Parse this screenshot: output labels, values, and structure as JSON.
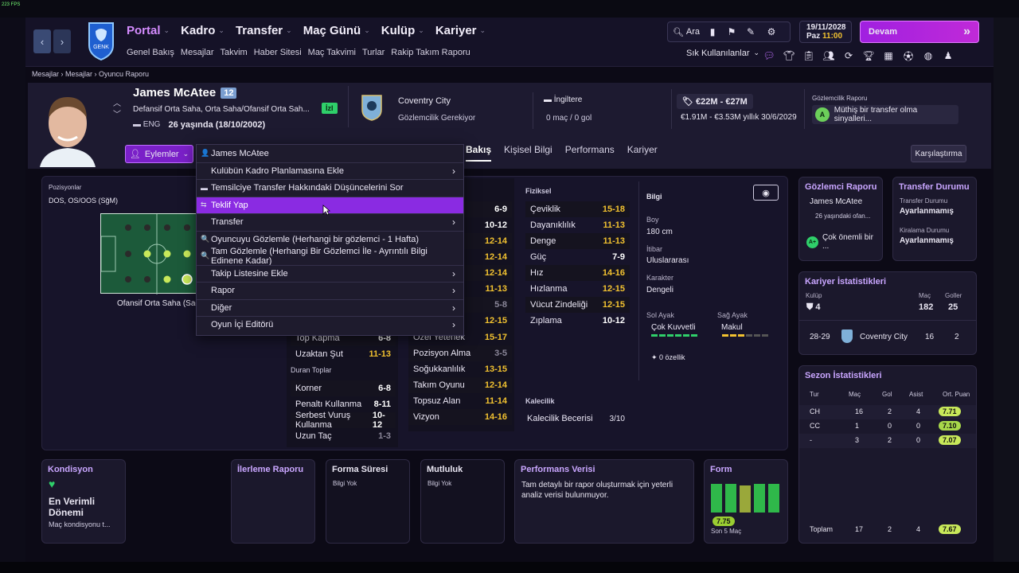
{
  "topbar": {
    "fps": "223 FPS"
  },
  "nav": {
    "back": "‹",
    "forward": "›",
    "menus": [
      {
        "label": "Portal"
      },
      {
        "label": "Kadro"
      },
      {
        "label": "Transfer"
      },
      {
        "label": "Maç Günü"
      },
      {
        "label": "Kulüp"
      },
      {
        "label": "Kariyer"
      }
    ],
    "submenus": [
      "Genel Bakış",
      "Mesajlar",
      "Takvim",
      "Haber Sitesi",
      "Maç Takvimi",
      "Turlar",
      "Rakip Takım Raporu"
    ],
    "search_label": "Ara",
    "date": "19/11/2028",
    "day": "Paz",
    "time": "11:00",
    "continue_label": "Devam",
    "shortcuts_label": "Sık Kullanılanlar",
    "club_logo_text": "GENK"
  },
  "breadcrumb": [
    "Mesajlar",
    "Mesajlar",
    "Oyuncu Raporu"
  ],
  "player": {
    "name": "James McAtee",
    "number": "12",
    "positions": "Defansif Orta Saha, Orta Saha/Ofansif Orta Sah...",
    "nationality": "ENG",
    "age": "26 yaşında (18/10/2002)",
    "status_badge": "İzl",
    "club": "Coventry City",
    "club_status": "Gözlemcilik Gerekiyor",
    "country": "İngiltere",
    "caps": "0 maç / 0 gol",
    "value": "€22M - €27M",
    "wage": "€1.91M - €3.53M yıllık 30/6/2029",
    "scout_report_title": "Gözlemcilik Raporu",
    "scout_grade": "A",
    "scout_report": "Müthiş bir transfer olma sinyalleri..."
  },
  "actions_label": "Eylemler",
  "tabs": [
    "Bakış",
    "Kişisel Bilgi",
    "Performans",
    "Kariyer"
  ],
  "compare_label": "Karşılaştırma",
  "context_menu": [
    {
      "label": "James McAtee",
      "icon": "👤",
      "arrow": ""
    },
    {
      "label": "Kulübün Kadro Planlamasına Ekle",
      "icon": "",
      "arrow": "›"
    },
    {
      "label": "Temsilciye Transfer Hakkındaki Düşüncelerini Sor",
      "icon": "▬",
      "arrow": ""
    },
    {
      "label": "Teklif Yap",
      "icon": "⇆",
      "arrow": ""
    },
    {
      "label": "Transfer",
      "icon": "",
      "arrow": "›"
    },
    {
      "label": "Oyuncuyu Gözlemle (Herhangi bir gözlemci - 1 Hafta)",
      "icon": "🔍",
      "arrow": ""
    },
    {
      "label": "Tam Gözlemle (Herhangi Bir Gözlemci İle - Ayrıntılı Bilgi Edinene Kadar)",
      "icon": "🔍",
      "arrow": ""
    },
    {
      "label": "Takip Listesine Ekle",
      "icon": "",
      "arrow": "›"
    },
    {
      "label": "Rapor",
      "icon": "",
      "arrow": "›"
    },
    {
      "label": "Diğer",
      "icon": "",
      "arrow": "›"
    },
    {
      "label": "Oyun İçi Editörü",
      "icon": "",
      "arrow": "›"
    }
  ],
  "positions_panel": {
    "title": "Pozisyonlar",
    "positions": "DOS, OS/OOS (SğM)",
    "role": "Ofansif Orta Saha (Sağ)"
  },
  "attrs_col1": {
    "visible": [
      {
        "name": "",
        "val": "6-9",
        "c": "wht"
      },
      {
        "name": "",
        "val": "10-12",
        "c": "wht"
      },
      {
        "name": "",
        "val": "12-14",
        "c": "yel"
      },
      {
        "name": "",
        "val": "12-14",
        "c": "yel"
      },
      {
        "name": "",
        "val": "12-14",
        "c": "yel"
      },
      {
        "name": "",
        "val": "11-13",
        "c": "yel"
      },
      {
        "name": "",
        "val": "5-8",
        "c": "gry"
      },
      {
        "name": "",
        "val": "12-15",
        "c": "yel"
      }
    ],
    "tail": [
      {
        "name": "Top Kapma",
        "val": "6-8",
        "c": "wht"
      },
      {
        "name": "Uzaktan Şut",
        "val": "11-13",
        "c": "yel"
      }
    ],
    "set_title": "Duran Toplar",
    "set": [
      {
        "name": "Korner",
        "val": "6-8",
        "c": "wht"
      },
      {
        "name": "Penaltı Kullanma",
        "val": "8-11",
        "c": "wht"
      },
      {
        "name": "Serbest Vuruş Kullanma",
        "val": "10-12",
        "c": "wht"
      },
      {
        "name": "Uzun Taç",
        "val": "1-3",
        "c": "gry"
      }
    ]
  },
  "attrs_col2": [
    {
      "name": "Özel Yetenek",
      "val": "15-17",
      "c": "yel"
    },
    {
      "name": "Pozisyon Alma",
      "val": "3-5",
      "c": "gry"
    },
    {
      "name": "Soğukkanlılık",
      "val": "13-15",
      "c": "yel"
    },
    {
      "name": "Takım Oyunu",
      "val": "12-14",
      "c": "yel"
    },
    {
      "name": "Topsuz Alan",
      "val": "11-14",
      "c": "yel"
    },
    {
      "name": "Vizyon",
      "val": "14-16",
      "c": "yel"
    }
  ],
  "physical": {
    "title": "Fiziksel",
    "items": [
      {
        "name": "Çeviklik",
        "val": "15-18",
        "c": "yel"
      },
      {
        "name": "Dayanıklılık",
        "val": "11-13",
        "c": "yel"
      },
      {
        "name": "Denge",
        "val": "11-13",
        "c": "yel"
      },
      {
        "name": "Güç",
        "val": "7-9",
        "c": "wht"
      },
      {
        "name": "Hız",
        "val": "14-16",
        "c": "yel"
      },
      {
        "name": "Hızlanma",
        "val": "12-15",
        "c": "yel"
      },
      {
        "name": "Vücut Zindeliği",
        "val": "12-15",
        "c": "yel"
      },
      {
        "name": "Zıplama",
        "val": "10-12",
        "c": "wht"
      }
    ]
  },
  "goalkeeping": {
    "title": "Kalecilik",
    "name": "Kalecilik Becerisi",
    "val": "3/10"
  },
  "info": {
    "title": "Bilgi",
    "height_label": "Boy",
    "height": "180 cm",
    "rep_label": "İtibar",
    "rep": "Uluslararası",
    "pers_label": "Karakter",
    "pers": "Dengeli",
    "left_label": "Sol Ayak",
    "left": "Çok Kuvvetli",
    "right_label": "Sağ Ayak",
    "right": "Makul",
    "traits": "0 özellik"
  },
  "scout_card": {
    "title": "Gözlemci Raporu",
    "name": "James McAtee",
    "age": "26 yaşındaki ofan...",
    "summary": "Çok önemli bir ...",
    "grade": "A+"
  },
  "transfer_card": {
    "title": "Transfer Durumu",
    "tlabel": "Transfer Durumu",
    "tval": "Ayarlanmamış",
    "llabel": "Kiralama Durumu",
    "lval": "Ayarlanmamış"
  },
  "career": {
    "title": "Kariyer İstatistikleri",
    "club_label": "Kulüp",
    "apps_label": "Maç",
    "goals_label": "Goller",
    "clubs": "4",
    "apps": "182",
    "goals": "25",
    "row_season": "28-29",
    "row_club": "Coventry City",
    "row_apps": "16",
    "row_goals": "2"
  },
  "season": {
    "title": "Sezon İstatistikleri",
    "headers": [
      "Tur",
      "Maç",
      "Gol",
      "Asist",
      "Ort. Puan"
    ],
    "rows": [
      {
        "tur": "CH",
        "mac": "16",
        "gol": "2",
        "asist": "4",
        "puan": "7.71"
      },
      {
        "tur": "CC",
        "mac": "1",
        "gol": "0",
        "asist": "0",
        "puan": "7.10"
      },
      {
        "tur": "-",
        "mac": "3",
        "gol": "2",
        "asist": "0",
        "puan": "7.07"
      }
    ],
    "total_label": "Toplam",
    "total": {
      "mac": "17",
      "gol": "2",
      "asist": "4",
      "puan": "7.67"
    }
  },
  "condition": {
    "title": "Kondisyon",
    "status": "En Verimli Dönemi",
    "desc": "Maç kondisyonu t..."
  },
  "progress": {
    "title": "İlerleme Raporu"
  },
  "form_time": {
    "title": "Forma Süresi",
    "desc": "Bilgi Yok"
  },
  "morale": {
    "title": "Mutluluk",
    "desc": "Bilgi Yok"
  },
  "perf": {
    "title": "Performans Verisi",
    "desc": "Tam detaylı bir rapor oluşturmak için yeterli analiz verisi bulunmuyor."
  },
  "form": {
    "title": "Form",
    "rating": "7.75",
    "label": "Son 5 Maç",
    "bars": [
      0.9,
      0.9,
      0.85,
      0.9,
      0.9
    ]
  },
  "colors": {
    "accent": "#8a2be2",
    "purple_title": "#c9a6ff",
    "yellow": "#f2c230",
    "green": "#2fcf6a"
  }
}
